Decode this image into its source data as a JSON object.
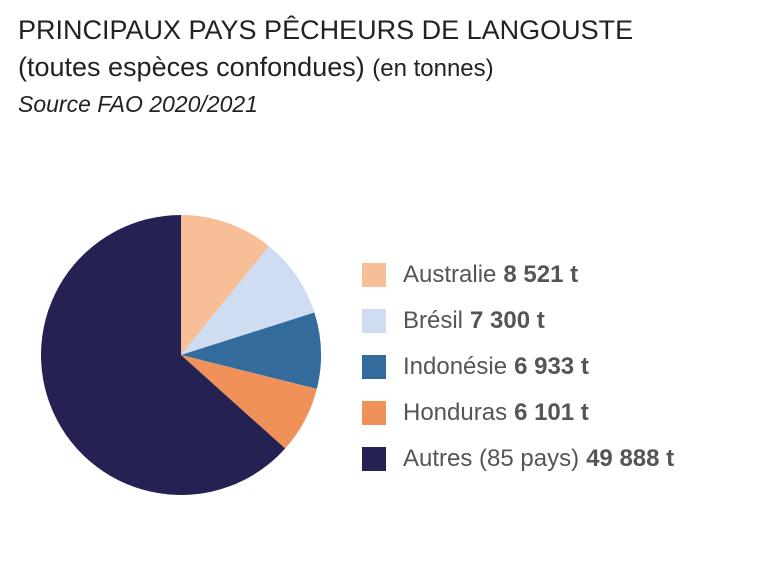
{
  "title": {
    "line1": "PRINCIPAUX PAYS PÊCHEURS DE LANGOUSTE",
    "line2_main": "(toutes espèces confondues)",
    "line2_unit": "(en tonnes)",
    "source": "Source FAO 2020/2021"
  },
  "chart_data": {
    "type": "pie",
    "title": "PRINCIPAUX PAYS PÊCHEURS DE LANGOUSTE",
    "subtitle": "(toutes espèces confondues) (en tonnes)",
    "source": "Source FAO 2020/2021",
    "legend_position": "right",
    "start_direction": "top, clockwise",
    "slices": [
      {
        "label": "Australie",
        "value": 8521,
        "display": "8 521 t",
        "color": "#F7BE98"
      },
      {
        "label": "Brésil",
        "value": 7300,
        "display": "7 300 t",
        "color": "#CEDDF2"
      },
      {
        "label": "Indonésie",
        "value": 6933,
        "display": "6 933 t",
        "color": "#326B9C"
      },
      {
        "label": "Honduras",
        "value": 6101,
        "display": "6 101 t",
        "color": "#F0915A"
      },
      {
        "label": "Autres (85 pays)",
        "value": 49888,
        "display": "49 888 t",
        "color": "#252153"
      }
    ]
  }
}
